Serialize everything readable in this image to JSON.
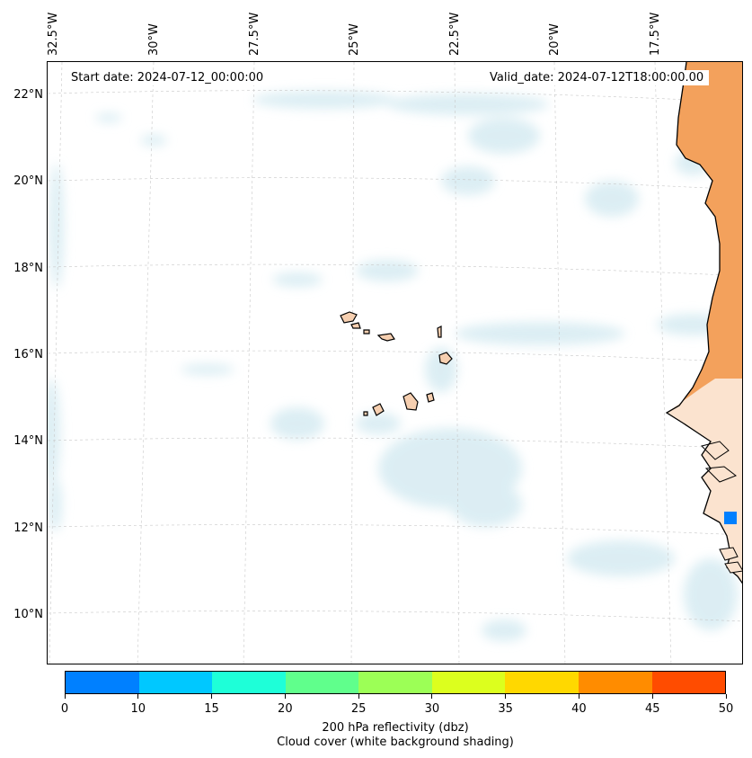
{
  "map": {
    "start_label": "Start date: 2024-07-12_00:00:00",
    "valid_label": "Valid_date: 2024-07-12T18:00:00.00",
    "lat_labels": [
      "22°N",
      "20°N",
      "18°N",
      "16°N",
      "14°N",
      "12°N",
      "10°N"
    ],
    "lon_labels": [
      "32.5°W",
      "30°W",
      "27.5°W",
      "25°W",
      "22.5°W",
      "20°W",
      "17.5°W"
    ],
    "land_color": "#f3a15c",
    "cloud_color": "#d6ebf2",
    "coast_color": "#000000"
  },
  "colorbar": {
    "ticks": [
      "0",
      "10",
      "15",
      "20",
      "25",
      "30",
      "35",
      "40",
      "45",
      "50"
    ],
    "colors": [
      "#0080ff",
      "#00c8ff",
      "#1effd8",
      "#60ff8c",
      "#9cff56",
      "#dcff1e",
      "#ffd800",
      "#ff8c00",
      "#ff4c00"
    ],
    "label_line1": "200 hPa reflectivity (dbz)",
    "label_line2": "Cloud cover (white background shading)"
  }
}
